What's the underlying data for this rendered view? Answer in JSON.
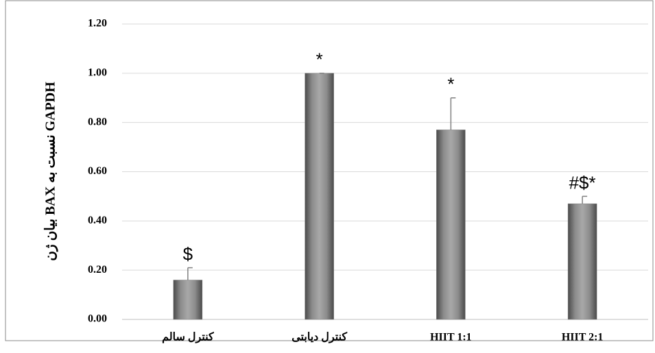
{
  "chart_data": {
    "type": "bar",
    "ylabel": "بیان ژن BAX نسبت به GAPDH",
    "categories": [
      "کنترل سالم",
      "کنترل دیابتی",
      "HIIT 1:1",
      "HIIT 2:1"
    ],
    "values": [
      0.16,
      1.0,
      0.77,
      0.47
    ],
    "errors": [
      0.05,
      0,
      0.13,
      0.03
    ],
    "annotations": [
      "$",
      "*",
      "*",
      "#$*"
    ],
    "color": "#7f7f7f",
    "ylim": [
      0,
      1.2
    ],
    "yticks": [
      {
        "value": 0,
        "label": "0.00"
      },
      {
        "value": 0.2,
        "label": "0.20"
      },
      {
        "value": 0.4,
        "label": "0.40"
      },
      {
        "value": 0.6,
        "label": "0.60"
      },
      {
        "value": 0.8,
        "label": "0.80"
      },
      {
        "value": 1.0,
        "label": "1.00"
      },
      {
        "value": 1.2,
        "label": "1.20"
      }
    ],
    "grid": true
  }
}
